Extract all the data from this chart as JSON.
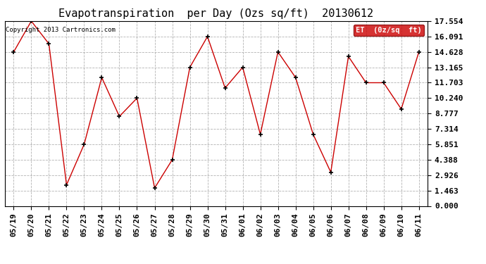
{
  "title": "Evapotranspiration  per Day (Ozs sq/ft)  20130612",
  "copyright": "Copyright 2013 Cartronics.com",
  "legend_label": "ET  (0z/sq  ft)",
  "legend_bg": "#cc0000",
  "legend_text_color": "#ffffff",
  "x_labels": [
    "05/19",
    "05/20",
    "05/21",
    "05/22",
    "05/23",
    "05/24",
    "05/25",
    "05/26",
    "05/27",
    "05/28",
    "05/29",
    "05/30",
    "05/31",
    "06/01",
    "06/02",
    "06/03",
    "06/04",
    "06/05",
    "06/06",
    "06/07",
    "06/08",
    "06/09",
    "06/10",
    "06/11"
  ],
  "y_values": [
    14.628,
    17.554,
    15.4,
    2.0,
    5.851,
    12.2,
    8.5,
    10.24,
    1.7,
    4.388,
    13.165,
    16.091,
    11.2,
    13.165,
    6.8,
    14.628,
    12.2,
    6.8,
    3.2,
    14.2,
    11.703,
    11.703,
    9.2,
    14.628
  ],
  "y_ticks": [
    0.0,
    1.463,
    2.926,
    4.388,
    5.851,
    7.314,
    8.777,
    10.24,
    11.703,
    13.165,
    14.628,
    16.091,
    17.554
  ],
  "y_min": 0.0,
  "y_max": 17.554,
  "line_color": "#cc0000",
  "marker_color": "#000000",
  "bg_color": "#ffffff",
  "grid_color": "#aaaaaa",
  "title_fontsize": 11,
  "tick_fontsize": 8,
  "copyright_fontsize": 6.5
}
